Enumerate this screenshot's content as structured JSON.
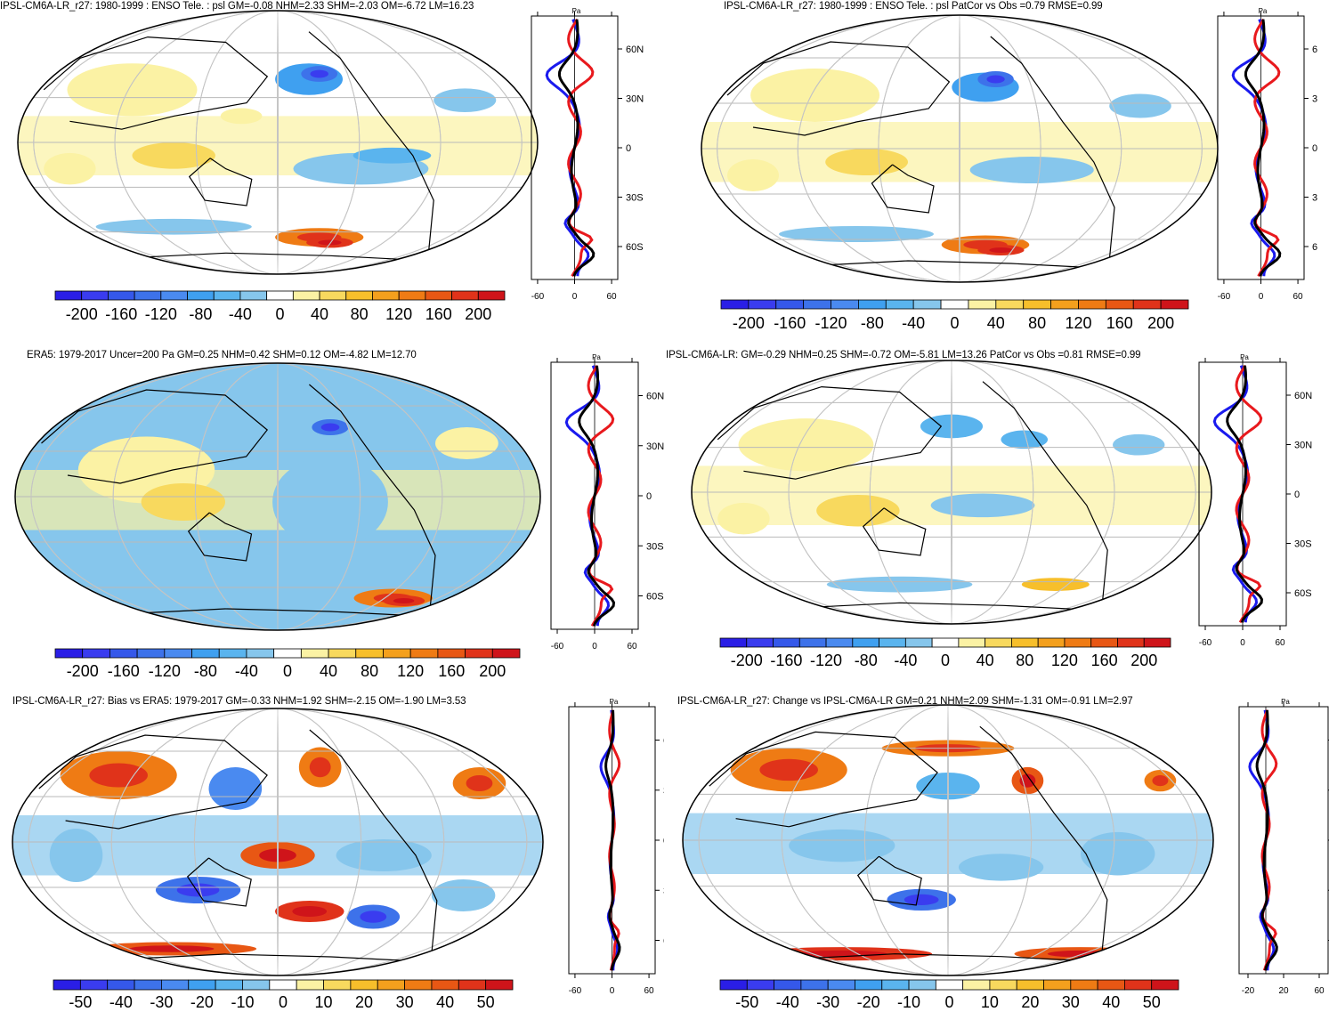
{
  "colors": {
    "psl_levels": [
      "#2a1ee6",
      "#3a3cef",
      "#3558ea",
      "#3d72ea",
      "#4a8af0",
      "#3fa0f0",
      "#5ab4ee",
      "#86c6ec",
      "#ffffff",
      "#fbf2a4",
      "#f8d95e",
      "#f7bf2b",
      "#f4a01d",
      "#ef7b14",
      "#e85714",
      "#e0331a",
      "#cf141a"
    ],
    "model": "#1a1aee",
    "obs": "#e8191d",
    "ref": "#000000"
  },
  "psl_colorbar_labels": [
    "-200",
    "-160",
    "-120",
    "-80",
    "-40",
    "0",
    "40",
    "80",
    "120",
    "160",
    "200"
  ],
  "bias_colorbar_labels": [
    "-50",
    "-40",
    "-30",
    "-20",
    "-10",
    "0",
    "10",
    "20",
    "30",
    "40",
    "50"
  ],
  "zonal_lat_labels": [
    "60N",
    "30N",
    "0",
    "30S",
    "60S"
  ],
  "zonal_lat_labels_cropped": [
    "6",
    "3",
    "0",
    "3",
    "6"
  ],
  "chart_data": [
    {
      "type": "heatmap",
      "title": "IPSL-CM6A-LR_r27: 1980-1999 : ENSO Tele. : psl GM=-0.08 NHM=2.33 SHM=-2.03 OM=-6.72 LM=16.23",
      "colorbar": [
        -200,
        -160,
        -120,
        -80,
        -40,
        0,
        40,
        80,
        120,
        160,
        200
      ],
      "profile": {
        "unit": "Pa",
        "xticks": [
          "-60",
          "0",
          "60"
        ],
        "xlim": [
          -70,
          70
        ]
      }
    },
    {
      "type": "heatmap",
      "title": "IPSL-CM6A-LR_r27: 1980-1999 : ENSO Tele. : psl PatCor vs Obs =0.79 RMSE=0.99",
      "colorbar": [
        -200,
        -160,
        -120,
        -80,
        -40,
        0,
        40,
        80,
        120,
        160,
        200
      ],
      "profile": {
        "unit": "Pa",
        "xticks": [
          "-60",
          "0",
          "60"
        ],
        "xlim": [
          -70,
          70
        ]
      }
    },
    {
      "type": "heatmap",
      "title": "ERA5: 1979-2017 Uncer=200 Pa GM=0.25 NHM=0.42 SHM=0.12 OM=-4.82 LM=12.70",
      "colorbar": [
        -200,
        -160,
        -120,
        -80,
        -40,
        0,
        40,
        80,
        120,
        160,
        200
      ],
      "profile": {
        "unit": "Pa",
        "xticks": [
          "-60",
          "0",
          "60"
        ],
        "xlim": [
          -70,
          70
        ]
      }
    },
    {
      "type": "heatmap",
      "title": "IPSL-CM6A-LR: GM=-0.29 NHM=0.25 SHM=-0.72 OM=-5.81 LM=13.26 PatCor vs Obs =0.81 RMSE=0.99",
      "colorbar": [
        -200,
        -160,
        -120,
        -80,
        -40,
        0,
        40,
        80,
        120,
        160,
        200
      ],
      "profile": {
        "unit": "Pa",
        "xticks": [
          "-60",
          "0",
          "60"
        ],
        "xlim": [
          -70,
          70
        ]
      }
    },
    {
      "type": "heatmap",
      "title": "IPSL-CM6A-LR_r27: Bias vs ERA5: 1979-2017 GM=-0.33 NHM=1.92 SHM=-2.15 OM=-1.90 LM=3.53",
      "colorbar": [
        -50,
        -40,
        -30,
        -20,
        -10,
        0,
        10,
        20,
        30,
        40,
        50
      ],
      "profile": {
        "unit": "Pa",
        "xticks": [
          "-60",
          "0",
          "60"
        ],
        "xlim": [
          -70,
          70
        ]
      }
    },
    {
      "type": "heatmap",
      "title": "IPSL-CM6A-LR_r27: Change vs IPSL-CM6A-LR GM=0.21 NHM=2.09 SHM=-1.31 OM=-0.91 LM=2.97",
      "colorbar": [
        -50,
        -40,
        -30,
        -20,
        -10,
        0,
        10,
        20,
        30,
        40,
        50
      ],
      "profile": {
        "unit": "Pa",
        "xticks": [
          "-20",
          "20",
          "60"
        ],
        "xlim": [
          -30,
          70
        ]
      }
    }
  ]
}
